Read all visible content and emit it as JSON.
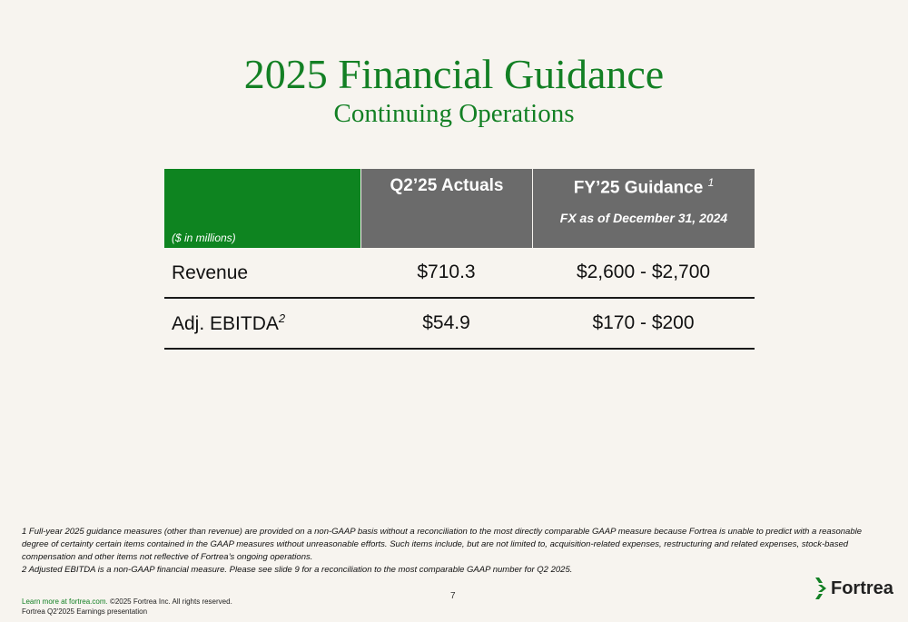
{
  "title": "2025 Financial Guidance",
  "subtitle": "Continuing Operations",
  "table": {
    "unit_label": "($ in millions)",
    "col_q2": "Q2’25 Actuals",
    "col_fy": "FY’25 Guidance",
    "col_fy_note": "1",
    "col_fy_sub": "FX as of December 31, 2024",
    "rows": [
      {
        "label": "Revenue",
        "note": "",
        "q2": "$710.3",
        "fy": "$2,600 - $2,700"
      },
      {
        "label": "Adj. EBITDA",
        "note": "2",
        "q2": "$54.9",
        "fy": "$170 - $200"
      }
    ]
  },
  "footnotes": {
    "f1": "1 Full-year 2025 guidance measures (other than revenue) are provided on a non-GAAP basis without a reconciliation to the most directly comparable GAAP measure because Fortrea is unable to predict with a reasonable degree of certainty certain items contained in the GAAP measures without unreasonable efforts. Such items include, but are not limited to, acquisition-related expenses, restructuring and related expenses, stock-based compensation and other items not reflective of Fortrea’s ongoing operations.",
    "f2": "2  Adjusted EBITDA is a non-GAAP financial measure. Please see slide 9 for a reconciliation to the most comparable GAAP number for Q2 2025."
  },
  "page_number": "7",
  "legal": {
    "link": "Learn more at fortrea.com.",
    "copyright": " ©2025 Fortrea Inc. All rights reserved.",
    "presentation": "Fortrea Q2'2025 Earnings presentation"
  },
  "logo_text": "Fortrea",
  "colors": {
    "brand_green": "#138024",
    "header_gray": "#6b6b6b",
    "background": "#f7f4ef"
  }
}
